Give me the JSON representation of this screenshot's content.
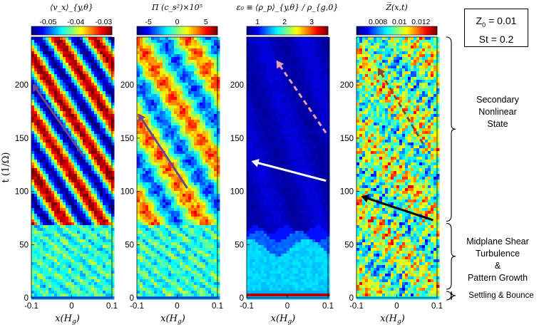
{
  "params": {
    "z0_label": "Z",
    "z0_sub": "0",
    "z0_value": " = 0.01",
    "st_label": "St = 0.2"
  },
  "ylabel": "t (1/Ω)",
  "xlabel": "x(H",
  "xlabel_sub": "g",
  "phases": [
    {
      "name": "Secondary Nonlinear State",
      "lines": [
        "Secondary",
        "Nonlinear",
        "State"
      ],
      "t_range": [
        72,
        245
      ]
    },
    {
      "name": "Midplane Shear Turbulence & Pattern Growth",
      "lines": [
        "Midplane Shear",
        "Turbulence",
        "&",
        "Pattern Growth"
      ],
      "t_range": [
        8,
        70
      ]
    },
    {
      "name": "Settling & Bounce",
      "lines": [
        "Settling & Bounce"
      ],
      "t_range": [
        0,
        6
      ]
    }
  ],
  "chart_data": [
    {
      "type": "heatmap",
      "title": "⟨v_x⟩_{y,θ}",
      "colorbar": {
        "ticks": [
          -0.05,
          -0.04,
          -0.03
        ],
        "tick_labels": [
          "-0.05",
          "-0.04",
          "-0.03"
        ],
        "range": [
          -0.056,
          -0.027
        ],
        "colormap": "jet"
      },
      "x_range": [
        -0.1,
        0.1
      ],
      "y_range": [
        0,
        245
      ],
      "x_ticks": [
        "-0.1",
        "0",
        "0.1"
      ],
      "y_ticks": [
        "0",
        "50",
        "100",
        "150",
        "200"
      ],
      "pattern": "diagonal-stripes",
      "arrows": [
        {
          "from": [
            0.03,
            133
          ],
          "to": [
            -0.095,
            200
          ],
          "color": "#6a4a8c",
          "style": "solid"
        }
      ]
    },
    {
      "type": "heatmap",
      "title": "Π (c_s²)×10⁵",
      "colorbar": {
        "ticks": [
          -5,
          0,
          5
        ],
        "tick_labels": [
          "-5",
          "0",
          "5"
        ],
        "range": [
          -7,
          7
        ],
        "colormap": "jet"
      },
      "x_range": [
        -0.1,
        0.1
      ],
      "y_range": [
        0,
        245
      ],
      "x_ticks": [
        "-0.1",
        "0",
        "0.1"
      ],
      "y_ticks": [
        "0",
        "50",
        "100",
        "150",
        "200"
      ],
      "pattern": "diagonal-stripes",
      "arrows": [
        {
          "from": [
            0.025,
            103
          ],
          "to": [
            -0.095,
            172
          ],
          "color": "#6a4a8c",
          "style": "solid"
        }
      ]
    },
    {
      "type": "heatmap",
      "title": "ε₀ ≡ ⟨ρ_p⟩_{y,θ} / ρ_{g,0}",
      "colorbar": {
        "ticks": [
          1,
          2,
          3
        ],
        "tick_labels": [
          "1",
          "2",
          "3"
        ],
        "range": [
          0.6,
          3.6
        ],
        "colormap": "jet"
      },
      "x_range": [
        -0.1,
        0.1
      ],
      "y_range": [
        0,
        245
      ],
      "x_ticks": [
        "-0.1",
        "0",
        "0.1"
      ],
      "y_ticks": [
        "0",
        "50",
        "100",
        "150",
        "200"
      ],
      "pattern": "layered",
      "arrows": [
        {
          "from": [
            0.095,
            110
          ],
          "to": [
            -0.085,
            128
          ],
          "color": "#ffffff",
          "style": "solid"
        },
        {
          "from": [
            0.095,
            155
          ],
          "to": [
            -0.025,
            222
          ],
          "color": "#e4a0b4",
          "style": "dashed"
        }
      ]
    },
    {
      "type": "heatmap",
      "title": "Z̅(x,t)",
      "colorbar": {
        "ticks": [
          0.008,
          0.01,
          0.012
        ],
        "tick_labels": [
          "0.008",
          "0.01",
          "0.012"
        ],
        "range": [
          0.006,
          0.0135
        ],
        "colormap": "jet"
      },
      "x_range": [
        -0.1,
        0.1
      ],
      "y_range": [
        0,
        245
      ],
      "x_ticks": [
        "-0.1",
        "0",
        "0.1"
      ],
      "y_ticks": [
        "0",
        "50",
        "100",
        "150",
        "200"
      ],
      "pattern": "noisy",
      "arrows": [
        {
          "from": [
            0.09,
            73
          ],
          "to": [
            -0.085,
            95
          ],
          "color": "#000000",
          "style": "solid"
        },
        {
          "from": [
            0.065,
            145
          ],
          "to": [
            -0.045,
            215
          ],
          "color": "#7a4a3c",
          "style": "dashed"
        }
      ]
    }
  ]
}
